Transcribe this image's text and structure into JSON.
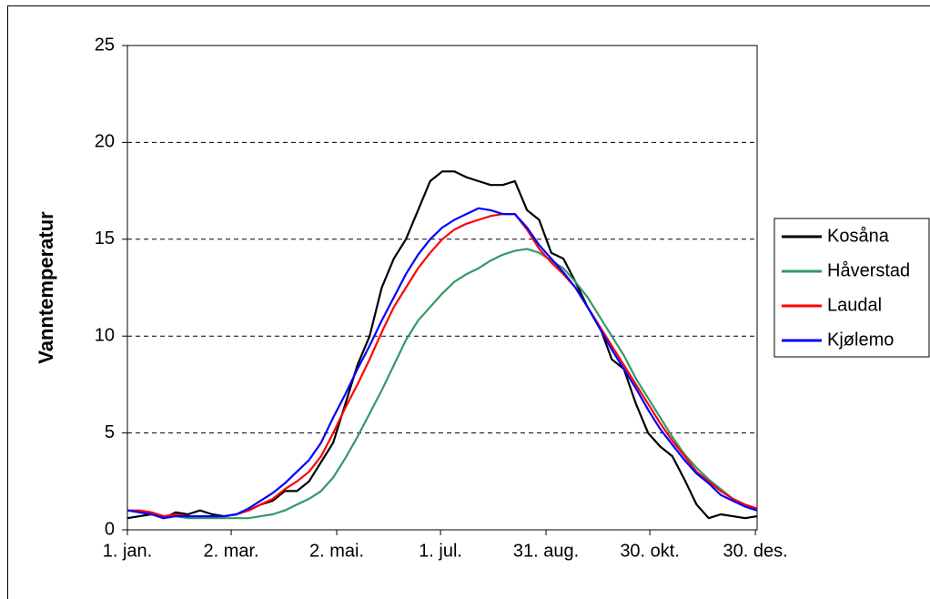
{
  "chart_data": {
    "type": "line",
    "y_label": "Vanntemperatur",
    "x": [
      1,
      8,
      15,
      22,
      29,
      36,
      43,
      50,
      57,
      64,
      71,
      78,
      85,
      92,
      99,
      106,
      113,
      120,
      127,
      134,
      141,
      148,
      155,
      162,
      169,
      176,
      183,
      190,
      197,
      204,
      211,
      218,
      225,
      232,
      239,
      246,
      253,
      260,
      267,
      274,
      281,
      288,
      295,
      302,
      309,
      316,
      323,
      330,
      337,
      344,
      351,
      358,
      365
    ],
    "series": [
      {
        "name": "Kosåna",
        "color": "#000000",
        "values": [
          0.6,
          0.7,
          0.8,
          0.6,
          0.9,
          0.8,
          1.0,
          0.8,
          0.7,
          0.8,
          1.0,
          1.3,
          1.5,
          2.0,
          2.0,
          2.5,
          3.5,
          4.5,
          6.5,
          8.5,
          10.0,
          12.5,
          14.0,
          15.0,
          16.5,
          18.0,
          18.5,
          18.5,
          18.2,
          18.0,
          17.8,
          17.8,
          18.0,
          16.5,
          16.0,
          14.3,
          14.0,
          12.8,
          11.5,
          10.5,
          8.8,
          8.3,
          6.5,
          5.0,
          4.3,
          3.8,
          2.6,
          1.3,
          0.6,
          0.8,
          0.7,
          0.6,
          0.7
        ]
      },
      {
        "name": "Håverstad",
        "color": "#339966",
        "values": [
          1.0,
          0.9,
          0.8,
          0.7,
          0.7,
          0.6,
          0.6,
          0.6,
          0.6,
          0.6,
          0.6,
          0.7,
          0.8,
          1.0,
          1.3,
          1.6,
          2.0,
          2.7,
          3.7,
          4.8,
          6.0,
          7.2,
          8.5,
          9.8,
          10.8,
          11.5,
          12.2,
          12.8,
          13.2,
          13.5,
          13.9,
          14.2,
          14.4,
          14.5,
          14.3,
          13.9,
          13.5,
          12.8,
          12.0,
          11.0,
          10.0,
          9.0,
          7.8,
          6.8,
          5.8,
          4.8,
          3.9,
          3.2,
          2.6,
          2.1,
          1.6,
          1.3,
          1.0
        ]
      },
      {
        "name": "Laudal",
        "color": "#ff0000",
        "values": [
          1.0,
          1.0,
          0.9,
          0.7,
          0.8,
          0.7,
          0.7,
          0.7,
          0.7,
          0.8,
          1.0,
          1.3,
          1.6,
          2.1,
          2.5,
          3.0,
          3.8,
          5.0,
          6.3,
          7.5,
          8.8,
          10.2,
          11.5,
          12.5,
          13.5,
          14.3,
          15.0,
          15.5,
          15.8,
          16.0,
          16.2,
          16.3,
          16.3,
          15.5,
          14.5,
          13.8,
          13.2,
          12.5,
          11.5,
          10.5,
          9.5,
          8.5,
          7.5,
          6.5,
          5.5,
          4.6,
          3.8,
          3.0,
          2.5,
          2.0,
          1.6,
          1.3,
          1.1
        ]
      },
      {
        "name": "Kjølemo",
        "color": "#0000ff",
        "values": [
          1.0,
          0.9,
          0.8,
          0.6,
          0.7,
          0.7,
          0.7,
          0.7,
          0.7,
          0.8,
          1.1,
          1.5,
          1.9,
          2.4,
          3.0,
          3.6,
          4.5,
          5.8,
          7.0,
          8.3,
          9.5,
          10.8,
          12.0,
          13.2,
          14.2,
          15.0,
          15.6,
          16.0,
          16.3,
          16.6,
          16.5,
          16.3,
          16.3,
          15.6,
          14.7,
          14.0,
          13.3,
          12.5,
          11.5,
          10.4,
          9.3,
          8.3,
          7.3,
          6.2,
          5.2,
          4.4,
          3.6,
          2.9,
          2.4,
          1.8,
          1.5,
          1.2,
          1.0
        ]
      }
    ],
    "xlim": [
      1,
      365
    ],
    "xticks": [
      {
        "value": 1,
        "label": "1. jan."
      },
      {
        "value": 61,
        "label": "2. mar."
      },
      {
        "value": 122,
        "label": "2. mai."
      },
      {
        "value": 182,
        "label": "1. jul."
      },
      {
        "value": 243,
        "label": "31. aug."
      },
      {
        "value": 303,
        "label": "30. okt."
      },
      {
        "value": 364,
        "label": "30. des."
      }
    ],
    "ylim": [
      0,
      25
    ],
    "yticks": [
      0,
      5,
      10,
      15,
      20,
      25
    ],
    "grid": true,
    "legend": "right"
  }
}
